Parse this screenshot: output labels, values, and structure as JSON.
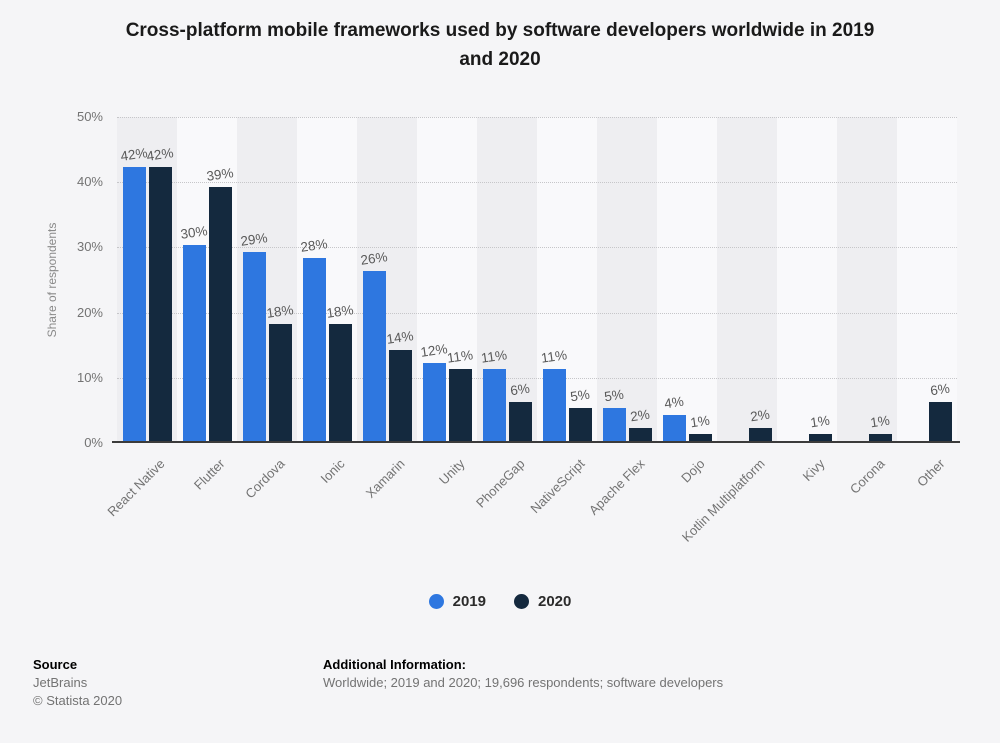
{
  "title_lines": [
    "Cross-platform mobile frameworks used by software developers worldwide in 2019",
    "and 2020"
  ],
  "chart_data": {
    "type": "bar",
    "title": "Cross-platform mobile frameworks used by software developers worldwide in 2019 and 2020",
    "xlabel": "",
    "ylabel": "Share of respondents",
    "ylim": [
      0,
      50
    ],
    "yticks": [
      "0%",
      "10%",
      "20%",
      "30%",
      "40%",
      "50%"
    ],
    "grid": true,
    "legend_position": "bottom",
    "value_suffix": "%",
    "categories": [
      "React Native",
      "Flutter",
      "Cordova",
      "Ionic",
      "Xamarin",
      "Unity",
      "PhoneGap",
      "NativeScript",
      "Apache Flex",
      "Dojo",
      "Kotlin Multiplatform",
      "Kivy",
      "Corona",
      "Other"
    ],
    "series": [
      {
        "name": "2019",
        "color": "#2e77e0",
        "values": [
          42,
          30,
          29,
          28,
          26,
          12,
          11,
          11,
          5,
          4,
          null,
          null,
          null,
          null
        ]
      },
      {
        "name": "2020",
        "color": "#14293e",
        "values": [
          42,
          39,
          18,
          18,
          14,
          11,
          6,
          5,
          2,
          1,
          2,
          1,
          1,
          6
        ]
      }
    ]
  },
  "footer": {
    "source_label": "Source",
    "source_value": "JetBrains",
    "copyright": "© Statista 2020",
    "additional_label": "Additional Information:",
    "additional_value": "Worldwide; 2019 and 2020; 19,696 respondents; software developers"
  },
  "colors": {
    "series_2019": "#2e77e0",
    "series_2020": "#14293e",
    "background": "#f5f5f7",
    "band_dark": "#eeeef1",
    "band_light": "#f9f9fb",
    "gridline": "#c6c6c9",
    "axis_line": "#3b3b3b",
    "title_text": "#1a1a1a",
    "tick_text": "#737373",
    "value_label_text": "#595959"
  }
}
